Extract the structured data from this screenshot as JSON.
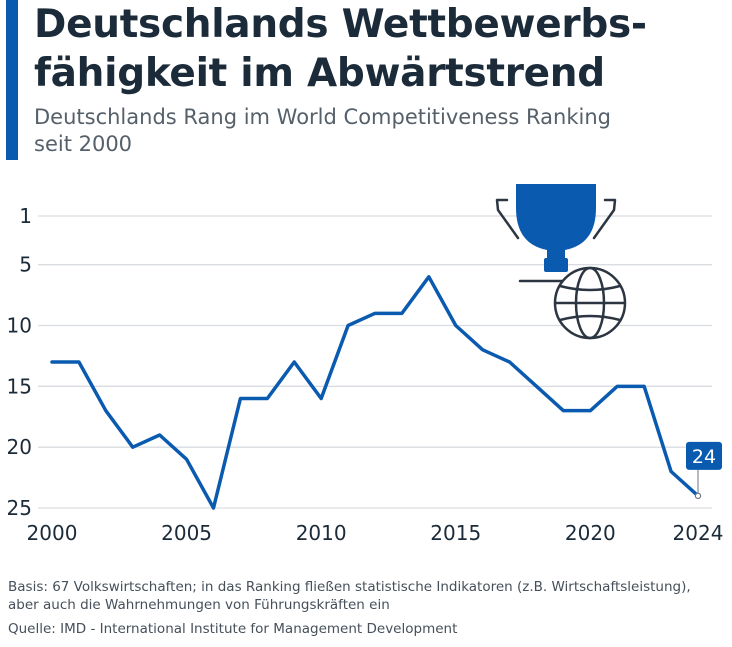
{
  "header": {
    "title_line1": "Deutschlands Wettbewerbs-",
    "title_line2": "fähigkeit im Abwärtstrend",
    "subtitle_line1": "Deutschlands Rang im World Competitiveness Ranking",
    "subtitle_line2": "seit 2000"
  },
  "chart_data": {
    "type": "line",
    "title": "Deutschlands Wettbewerbsfähigkeit im Abwärtstrend",
    "subtitle": "Deutschlands Rang im World Competitiveness Ranking seit 2000",
    "xlabel": "",
    "ylabel": "",
    "x": [
      2000,
      2001,
      2002,
      2003,
      2004,
      2005,
      2006,
      2007,
      2008,
      2009,
      2010,
      2011,
      2012,
      2013,
      2014,
      2015,
      2016,
      2017,
      2018,
      2019,
      2020,
      2021,
      2022,
      2023,
      2024
    ],
    "series": [
      {
        "values": [
          13,
          13,
          17,
          20,
          19,
          21,
          25,
          16,
          16,
          13,
          16,
          10,
          9,
          9,
          6,
          10,
          12,
          13,
          15,
          17,
          17,
          15,
          15,
          22,
          24
        ]
      }
    ],
    "x_ticks": [
      "2000",
      "2005",
      "2010",
      "2015",
      "2020",
      "2024"
    ],
    "y_ticks": [
      "1",
      "5",
      "10",
      "15",
      "20",
      "25"
    ],
    "xlim": [
      2000,
      2024
    ],
    "ylim": [
      1,
      25
    ],
    "y_inverted": true,
    "grid": "horizontal",
    "last_value_label": "24",
    "line_color": "#0a5bb0",
    "grid_color": "#d9dde1",
    "icons": [
      "trophy-icon",
      "globe-icon"
    ]
  },
  "footer": {
    "basis_line1": "Basis: 67 Volkswirtschaften; in das Ranking fließen statistische Indikatoren (z.B. Wirtschaftsleistung),",
    "basis_line2": "aber auch die Wahrnehmungen von Führungskräften ein",
    "source": "Quelle: IMD - International Institute for Management Development"
  }
}
